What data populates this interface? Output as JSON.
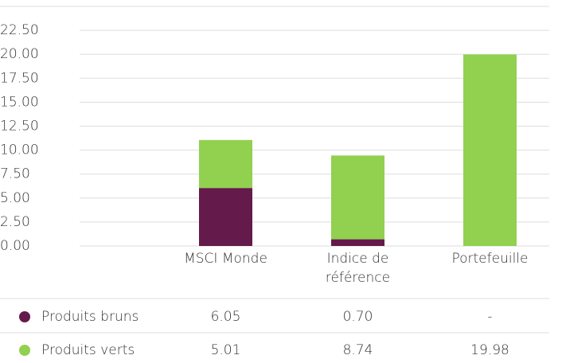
{
  "chart_data": {
    "type": "stacked_bar",
    "categories": [
      "MSCI Monde",
      "Indice de référence",
      "Portefeuille"
    ],
    "series": [
      {
        "name": "Produits bruns",
        "color": "#641a4a",
        "values": [
          6.05,
          0.7,
          null
        ],
        "value_labels": [
          "6.05",
          "0.70",
          "-"
        ]
      },
      {
        "name": "Produits verts",
        "color": "#92d050",
        "values": [
          5.01,
          8.74,
          19.98
        ],
        "value_labels": [
          "5.01",
          "8.74",
          "19.98"
        ]
      }
    ],
    "ylim": [
      0,
      25
    ],
    "yticks": [
      {
        "value": 0,
        "label": "0.00"
      },
      {
        "value": 2.5,
        "label": "2.50"
      },
      {
        "value": 5,
        "label": "5.00"
      },
      {
        "value": 7.5,
        "label": "7.50"
      },
      {
        "value": 10,
        "label": "10.00"
      },
      {
        "value": 12.5,
        "label": "12.50"
      },
      {
        "value": 15,
        "label": "15.00"
      },
      {
        "value": 17.5,
        "label": "17.50"
      },
      {
        "value": 20,
        "label": "20.00"
      },
      {
        "value": 22.5,
        "label": "22.50"
      }
    ],
    "grid": true
  }
}
